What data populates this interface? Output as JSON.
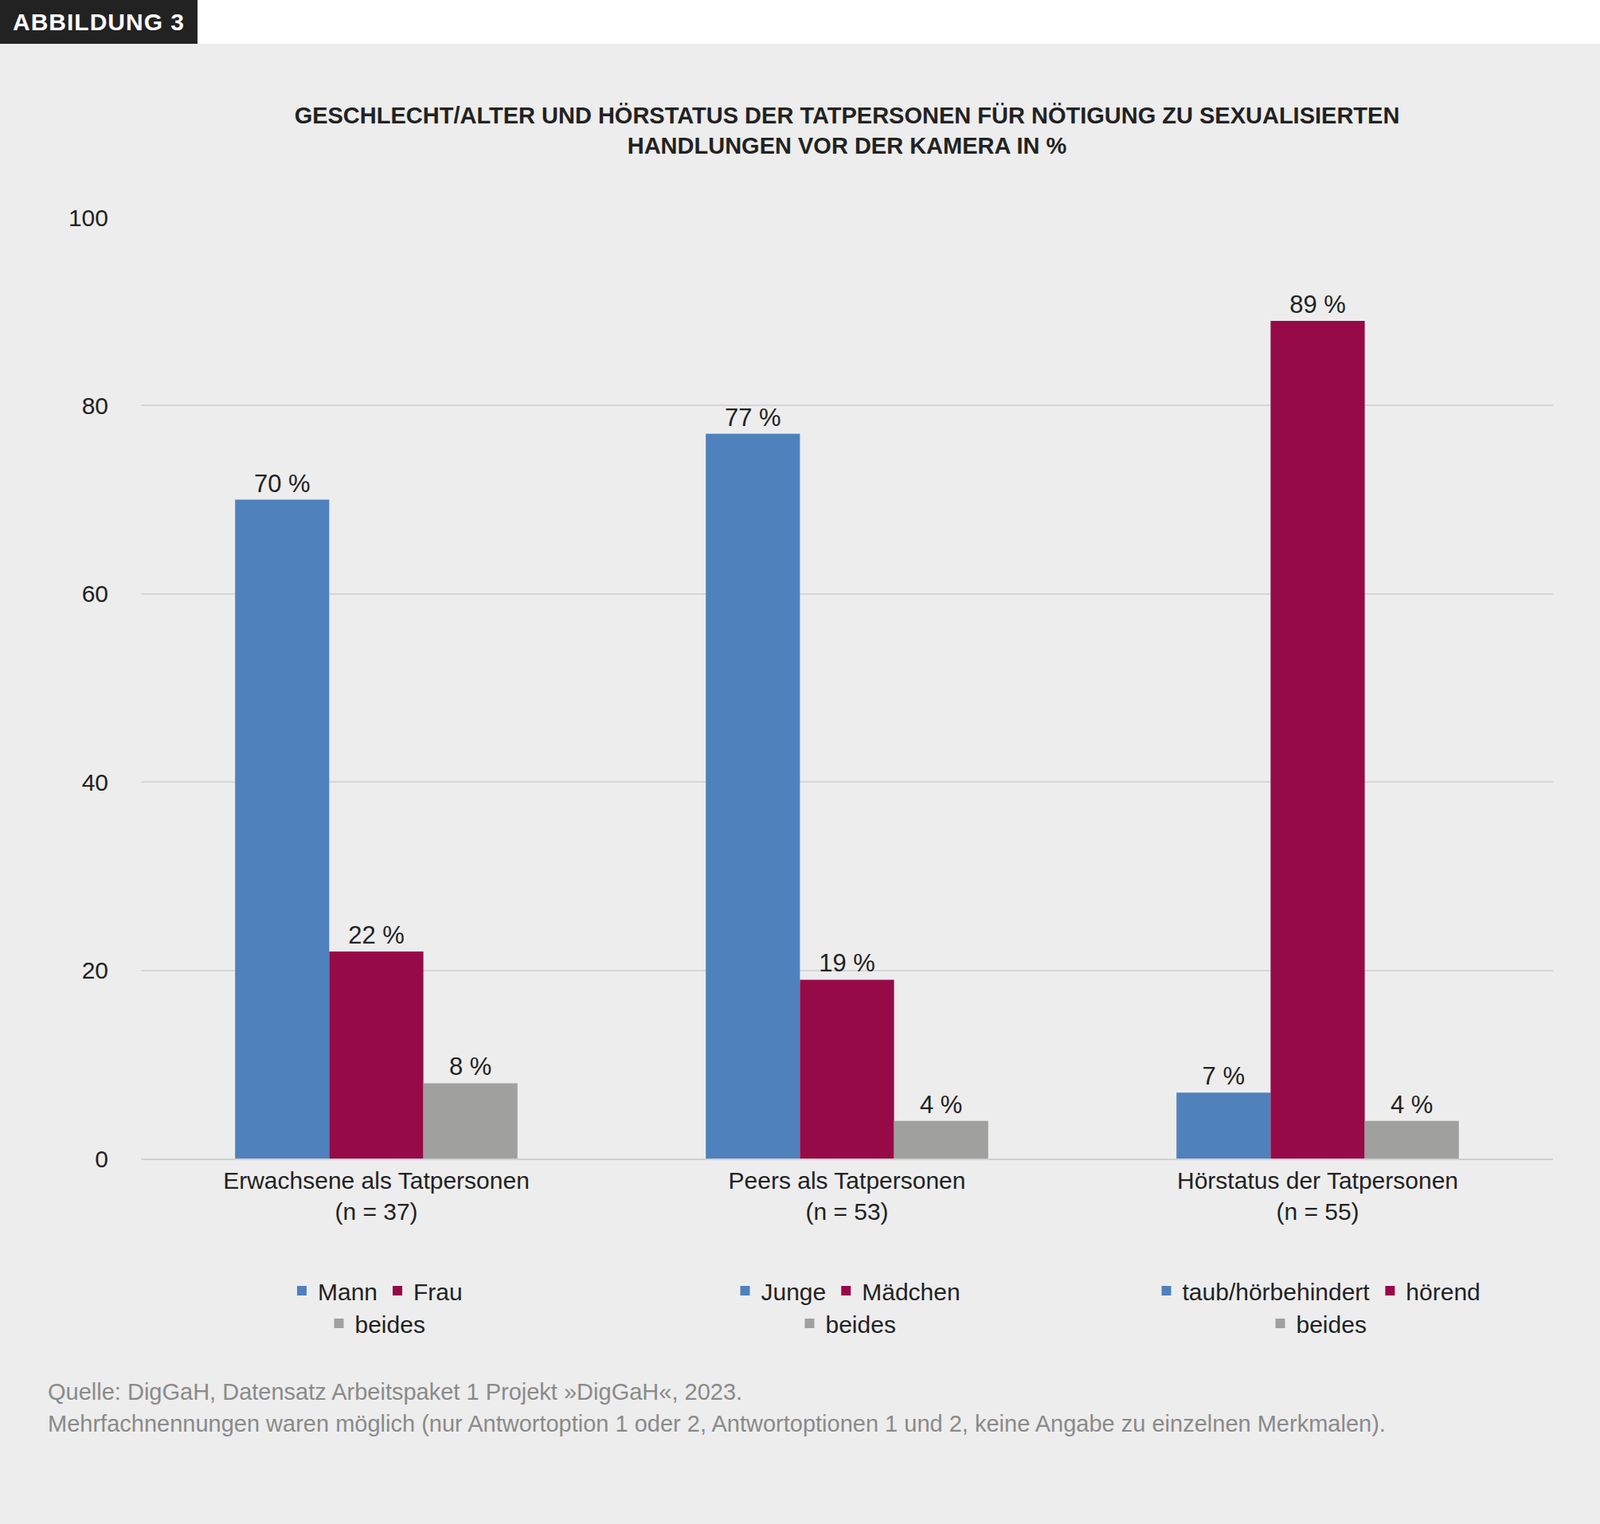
{
  "chart_data": {
    "type": "bar",
    "figure_label": "ABBILDUNG 3",
    "title": "GESCHLECHT/ALTER UND HÖRSTATUS DER TATPERSONEN FÜR NÖTIGUNG ZU SEXUALISIERTEN\nHANDLUNGEN VOR DER KAMERA IN %",
    "categories": [
      "Erwachsene als Tatpersonen\n(n = 37)",
      "Peers als Tatpersonen\n(n = 53)",
      "Hörstatus der Tatpersonen\n(n = 55)"
    ],
    "series": [
      {
        "name": "Mann",
        "color": "#4f81bd",
        "values": [
          70,
          null,
          null
        ],
        "value_labels": [
          "70 %",
          null,
          null
        ]
      },
      {
        "name": "Frau",
        "color": "#960a47",
        "values": [
          22,
          null,
          null
        ],
        "value_labels": [
          "22 %",
          null,
          null
        ]
      },
      {
        "name": "beides",
        "color": "#a0a09f",
        "values": [
          8,
          null,
          null
        ],
        "value_labels": [
          "8 %",
          null,
          null
        ]
      },
      {
        "name": "Junge",
        "color": "#4f81bd",
        "values": [
          null,
          77,
          null
        ],
        "value_labels": [
          null,
          "77 %",
          null
        ]
      },
      {
        "name": "Mädchen",
        "color": "#960a47",
        "values": [
          null,
          19,
          null
        ],
        "value_labels": [
          null,
          "19 %",
          null
        ]
      },
      {
        "name": "beides",
        "color": "#a0a09f",
        "values": [
          null,
          4,
          null
        ],
        "value_labels": [
          null,
          "4 %",
          null
        ]
      },
      {
        "name": "taub/hörbehindert",
        "color": "#4f81bd",
        "values": [
          null,
          null,
          7
        ],
        "value_labels": [
          null,
          null,
          "7 %"
        ]
      },
      {
        "name": "hörend",
        "color": "#960a47",
        "values": [
          null,
          null,
          89
        ],
        "value_labels": [
          null,
          null,
          "89 %"
        ]
      },
      {
        "name": "beides",
        "color": "#a0a09f",
        "values": [
          null,
          null,
          4
        ],
        "value_labels": [
          null,
          null,
          "4 %"
        ]
      }
    ],
    "ylim": [
      0,
      100
    ],
    "yticks": [
      0,
      20,
      40,
      60,
      80,
      100
    ],
    "grid": true,
    "data_labels": true,
    "source": "Quelle: DigGaH, Datensatz Arbeitspaket 1 Projekt »DigGaH«, 2023.",
    "note": "Mehrfachnennungen waren möglich (nur Antwortoption 1 oder 2, Antwortoptionen 1 und 2, keine Angabe zu einzelnen Merkmalen)."
  }
}
